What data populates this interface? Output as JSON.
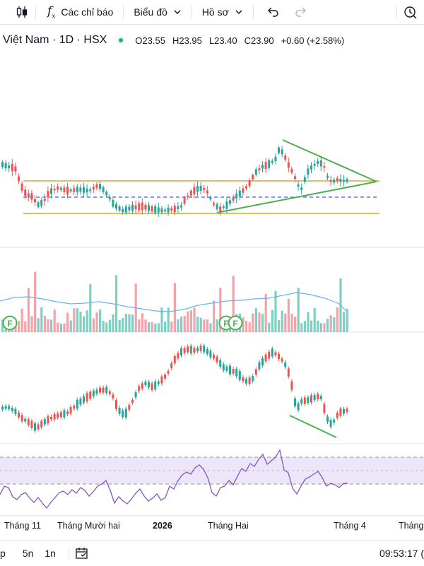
{
  "toolbar": {
    "indicators_label": "Các chỉ báo",
    "chart_label": "Biểu đồ",
    "profile_label": "Hồ sơ"
  },
  "legend": {
    "symbol": "Việt Nam · 1D · HSX",
    "open": "O23.55",
    "high": "H23.95",
    "low": "L23.40",
    "close": "C23.90",
    "change": "+0.60 (+2.58%)"
  },
  "xaxis": {
    "labels": [
      "Tháng 11",
      "Tháng Mười hai",
      "2026",
      "Tháng Hai",
      "Tháng 4",
      "Tháng"
    ]
  },
  "bottombar": {
    "ranges": [
      "p",
      "5n",
      "1n"
    ],
    "time": "09:53:17 ("
  },
  "markers": {
    "f_label": "F"
  },
  "colors": {
    "up": "#26a69a",
    "down": "#ef5350",
    "vol_up": "#7ecfc4",
    "vol_down": "#f5a3a8",
    "trend_green": "#4caf50",
    "level_orange": "#f0a12c",
    "level_blue": "#2962ff",
    "rsi_line": "#7e57c2",
    "rsi_band": "#ece6f8",
    "ma_line": "#64b5f6"
  }
}
